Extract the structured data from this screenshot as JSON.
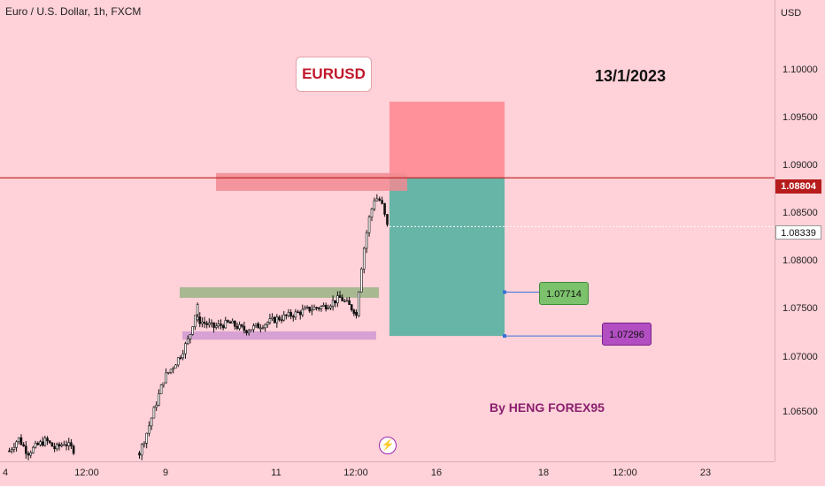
{
  "header": {
    "symbol_title": "Euro / U.S. Dollar, 1h, FXCM",
    "currency": "USD"
  },
  "annotations": {
    "pair_label": "EURUSD",
    "date_label": "13/1/2023",
    "author_label": "By HENG FOREX95"
  },
  "price_axis": {
    "ticks": [
      "1.10000",
      "1.09500",
      "1.09000",
      "1.08500",
      "1.08000",
      "1.07500",
      "1.07000",
      "1.06500"
    ],
    "current_line_price": "1.08804",
    "last_price": "1.08339"
  },
  "time_axis": {
    "labels": [
      "4",
      "12:00",
      "9",
      "11",
      "12:00",
      "16",
      "18",
      "12:00",
      "23"
    ]
  },
  "targets": {
    "tp1": "1.07714",
    "tp2": "1.07296"
  },
  "colors": {
    "background": "#ffd1d8",
    "resistance_line": "#b71c1c",
    "stop_zone": "#ff8a94",
    "profit_zone": "#5fb3a3",
    "supply_zone": "#f28b93",
    "green_zone": "#9fb58a",
    "purple_zone": "#d39bd3",
    "tp1_box": "#7cc26c",
    "tp2_box": "#b24ec2",
    "candles": "#111111"
  },
  "chart_data": {
    "type": "candlestick",
    "title": "Euro / U.S. Dollar, 1h, FXCM",
    "ylim": [
      1.061,
      1.105
    ],
    "y_ticks": [
      1.1,
      1.095,
      1.09,
      1.085,
      1.08,
      1.075,
      1.07,
      1.065
    ],
    "series": [
      {
        "segments": [
          {
            "x_start": 0.012,
            "x_end": 0.095,
            "close_path": [
              1.062,
              1.0632,
              1.0618,
              1.0625,
              1.063,
              1.0622,
              1.0628,
              1.0621
            ]
          },
          {
            "x_start": 0.18,
            "x_end": 0.255,
            "close_path": [
              1.0618,
              1.064,
              1.0665,
              1.069,
              1.07,
              1.0712,
              1.0728,
              1.076
            ]
          },
          {
            "x_start": 0.255,
            "x_end": 0.46,
            "close_path": [
              1.0745,
              1.0738,
              1.0742,
              1.0735,
              1.074,
              1.0746,
              1.075,
              1.0755,
              1.0758,
              1.0766,
              1.0752
            ]
          },
          {
            "x_start": 0.46,
            "x_end": 0.5,
            "close_path": [
              1.0752,
              1.0805,
              1.084,
              1.0862,
              1.0858,
              1.0834
            ]
          }
        ]
      }
    ],
    "levels": [
      {
        "name": "resistance",
        "price": 1.08804
      },
      {
        "name": "last",
        "price": 1.08339
      },
      {
        "name": "tp1",
        "price": 1.07714
      },
      {
        "name": "tp2",
        "price": 1.07296
      }
    ],
    "zones": [
      {
        "name": "stop-loss",
        "from": 1.08804,
        "to": 1.0953
      },
      {
        "name": "take-profit",
        "from": 1.07296,
        "to": 1.08804
      },
      {
        "name": "supply",
        "from": 1.0868,
        "to": 1.0885
      },
      {
        "name": "green-support",
        "from": 1.0766,
        "to": 1.0776
      },
      {
        "name": "purple-support",
        "from": 1.0726,
        "to": 1.0734
      }
    ]
  }
}
